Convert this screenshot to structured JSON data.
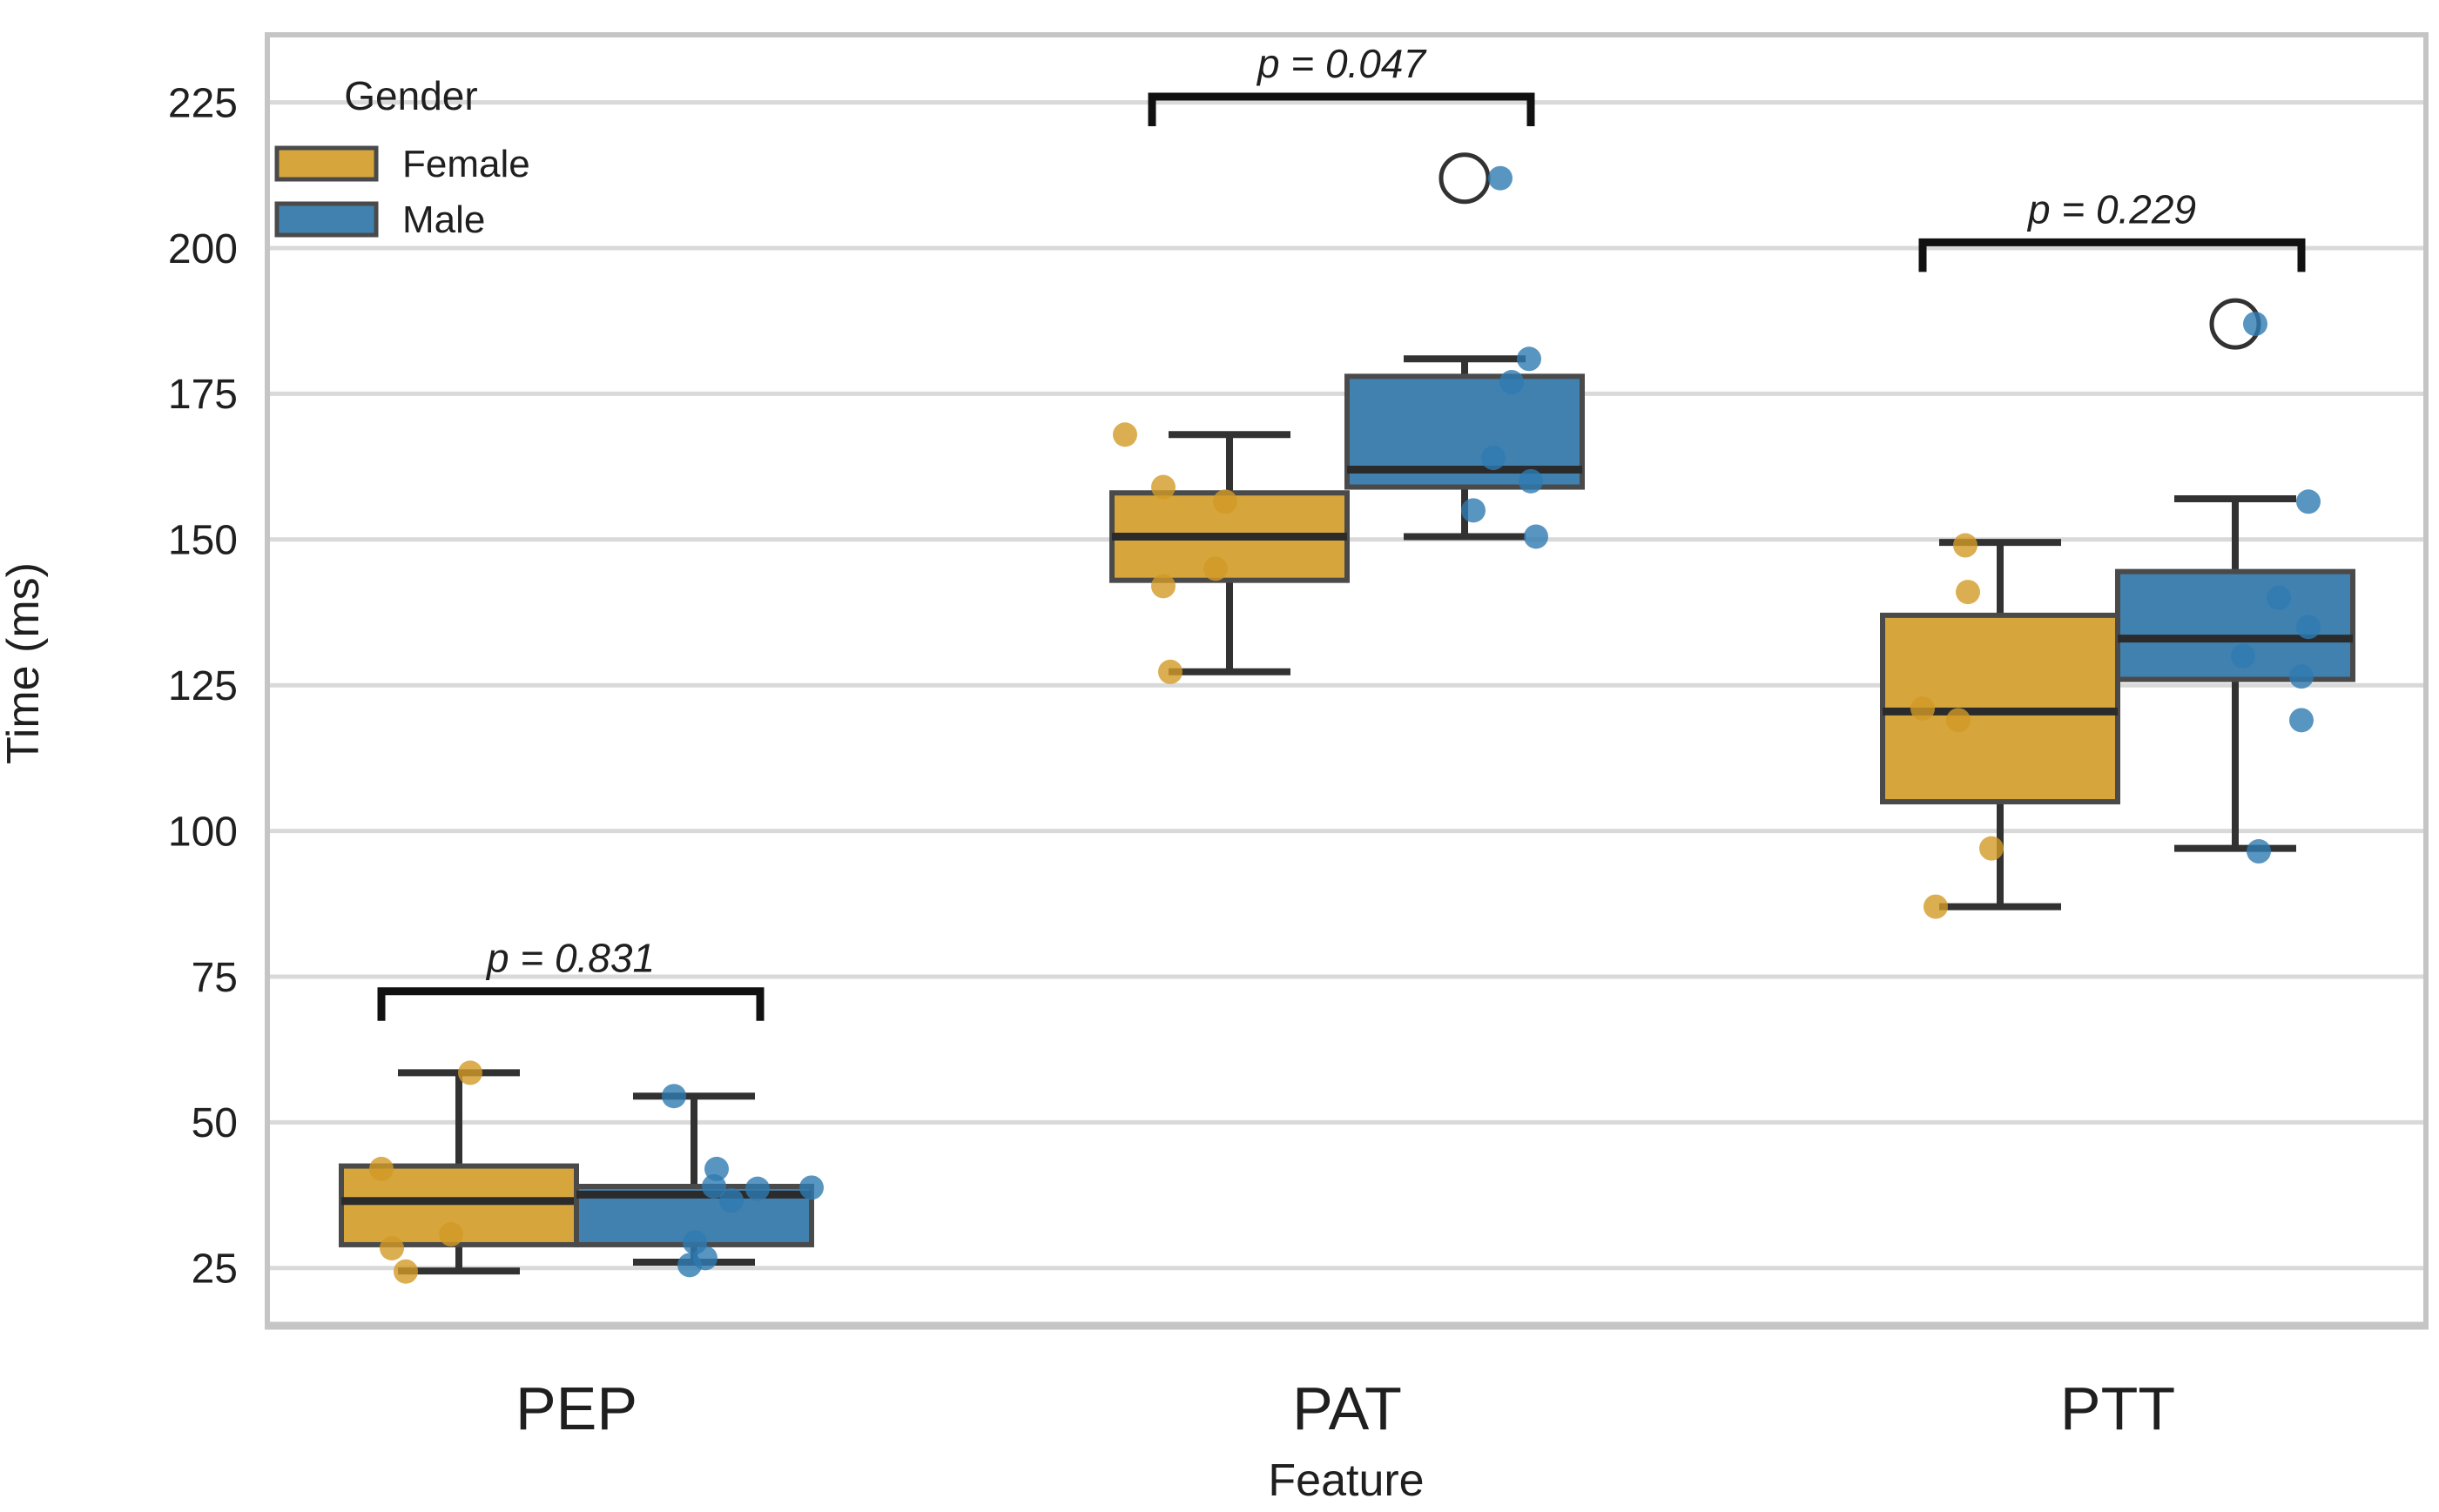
{
  "figure": {
    "background": "#ffffff",
    "text_color": "#1f1f1f",
    "grid_color": "#d9d9d9",
    "frame_color": "#c5c5c5",
    "box_edge_color": "#4a4a4a",
    "line_color": "#323232",
    "bracket_color": "#111111"
  },
  "chart_data": {
    "type": "boxplot",
    "title": "",
    "xlabel": "Feature",
    "ylabel": "Time (ms)",
    "categories": [
      "PEP",
      "PAT",
      "PTT"
    ],
    "ylim": [
      15.1,
      236.6
    ],
    "yticks": [
      25,
      50,
      75,
      100,
      125,
      150,
      175,
      200,
      225
    ],
    "grid": true,
    "legend": {
      "title": "Gender",
      "position": "upper left",
      "entries": [
        {
          "label": "Female",
          "color": "#d6a63d"
        },
        {
          "label": "Male",
          "color": "#4181af"
        }
      ]
    },
    "annotations": [
      {
        "category": "PEP",
        "text": "p = 0.831",
        "bar_value": 72.5
      },
      {
        "category": "PAT",
        "text": "p = 0.047",
        "bar_value": 226
      },
      {
        "category": "PTT",
        "text": "p = 0.229",
        "bar_value": 201
      }
    ],
    "series": [
      {
        "name": "Female",
        "color": "#d6a63d",
        "point_color": "#d29a26",
        "boxes": [
          {
            "category": "PEP",
            "whisker_low": 24.5,
            "q1": 29,
            "median": 36.5,
            "q3": 42.5,
            "whisker_high": 58.5,
            "outliers": [],
            "points": [
              [
                58.5,
                13
              ],
              [
                42,
                -89
              ],
              [
                30.8,
                -9
              ],
              [
                28.4,
                -77
              ],
              [
                24.4,
                -61
              ]
            ]
          },
          {
            "category": "PAT",
            "whisker_low": 127.3,
            "q1": 143,
            "median": 150.5,
            "q3": 158,
            "whisker_high": 168,
            "outliers": [],
            "points": [
              [
                168,
                -120
              ],
              [
                159,
                -76
              ],
              [
                156.5,
                -5
              ],
              [
                145,
                -16
              ],
              [
                142,
                -76
              ],
              [
                127.3,
                -68
              ]
            ]
          },
          {
            "category": "PTT",
            "whisker_low": 87,
            "q1": 105,
            "median": 120.5,
            "q3": 137,
            "whisker_high": 149.5,
            "outliers": [],
            "points": [
              [
                149,
                -40
              ],
              [
                141,
                -37
              ],
              [
                121,
                -89
              ],
              [
                119,
                -48
              ],
              [
                97,
                -10
              ],
              [
                87,
                -74
              ]
            ]
          }
        ]
      },
      {
        "name": "Male",
        "color": "#4181af",
        "point_color": "#2e7bb1",
        "boxes": [
          {
            "category": "PEP",
            "whisker_low": 26,
            "q1": 29,
            "median": 37.6,
            "q3": 39,
            "whisker_high": 54.5,
            "outliers": [],
            "points": [
              [
                54.5,
                -23
              ],
              [
                42,
                26
              ],
              [
                39,
                23
              ],
              [
                38.8,
                135
              ],
              [
                38.6,
                73
              ],
              [
                36.6,
                43
              ],
              [
                29.4,
                1
              ],
              [
                26.7,
                13
              ],
              [
                25.5,
                -5
              ]
            ]
          },
          {
            "category": "PAT",
            "whisker_low": 150.5,
            "q1": 159,
            "median": 162,
            "q3": 178,
            "whisker_high": 181,
            "outliers": [
              212
            ],
            "points": [
              [
                212,
                41
              ],
              [
                181,
                74
              ],
              [
                177,
                54
              ],
              [
                164,
                33
              ],
              [
                160,
                76
              ],
              [
                155,
                10
              ],
              [
                150.5,
                82
              ]
            ]
          },
          {
            "category": "PTT",
            "whisker_low": 97,
            "q1": 126,
            "median": 133,
            "q3": 144.5,
            "whisker_high": 157,
            "outliers": [
              187
            ],
            "points": [
              [
                187,
                23
              ],
              [
                156.5,
                84
              ],
              [
                140,
                50
              ],
              [
                135,
                84
              ],
              [
                130,
                9
              ],
              [
                126.5,
                76
              ],
              [
                119,
                76
              ],
              [
                96.5,
                27
              ]
            ]
          }
        ]
      }
    ]
  }
}
